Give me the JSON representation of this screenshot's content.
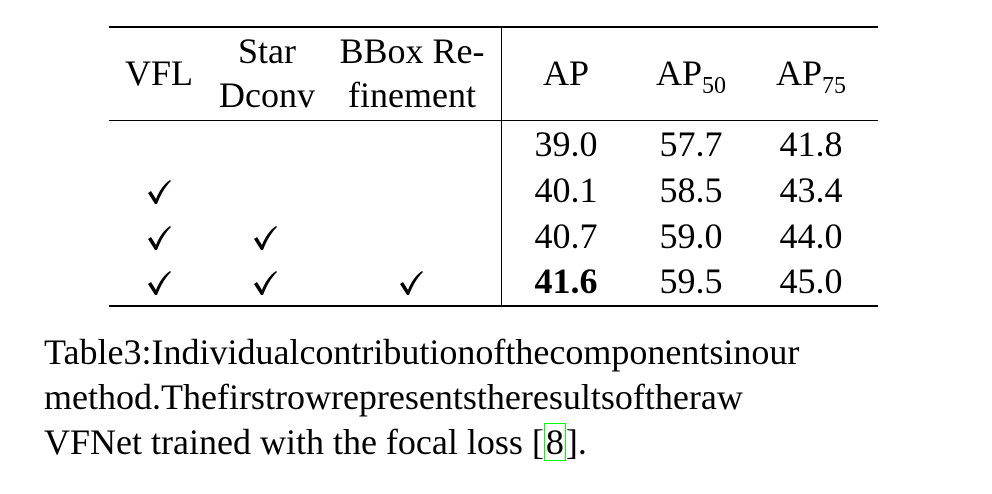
{
  "table": {
    "headers": {
      "vfl": "VFL",
      "star_line1": "Star",
      "star_line2": "Dconv",
      "bbox_line1": "BBox Re-",
      "bbox_line2": "finement",
      "ap": "AP",
      "ap50_base": "AP",
      "ap50_sub": "50",
      "ap75_base": "AP",
      "ap75_sub": "75"
    },
    "rows": [
      {
        "vfl": false,
        "star": false,
        "bbox": false,
        "ap": "39.0",
        "ap50": "57.7",
        "ap75": "41.8"
      },
      {
        "vfl": true,
        "star": false,
        "bbox": false,
        "ap": "40.1",
        "ap50": "58.5",
        "ap75": "43.4"
      },
      {
        "vfl": true,
        "star": true,
        "bbox": false,
        "ap": "40.7",
        "ap50": "59.0",
        "ap75": "44.0"
      },
      {
        "vfl": true,
        "star": true,
        "bbox": true,
        "ap": "41.6",
        "ap50": "59.5",
        "ap75": "45.0"
      }
    ],
    "check_glyph": "checkmark-icon"
  },
  "caption": {
    "line1_words": [
      "Table",
      "3:",
      "Individual",
      "contribution",
      "of",
      "the",
      "components",
      "in",
      "our"
    ],
    "line2_words": [
      "method.",
      "The",
      "first",
      "row",
      "represents",
      "the",
      "results",
      "of",
      "the",
      "raw"
    ],
    "line3_prefix": "VFNet trained with the focal loss [",
    "line3_ref": "8",
    "line3_suffix": "]."
  }
}
